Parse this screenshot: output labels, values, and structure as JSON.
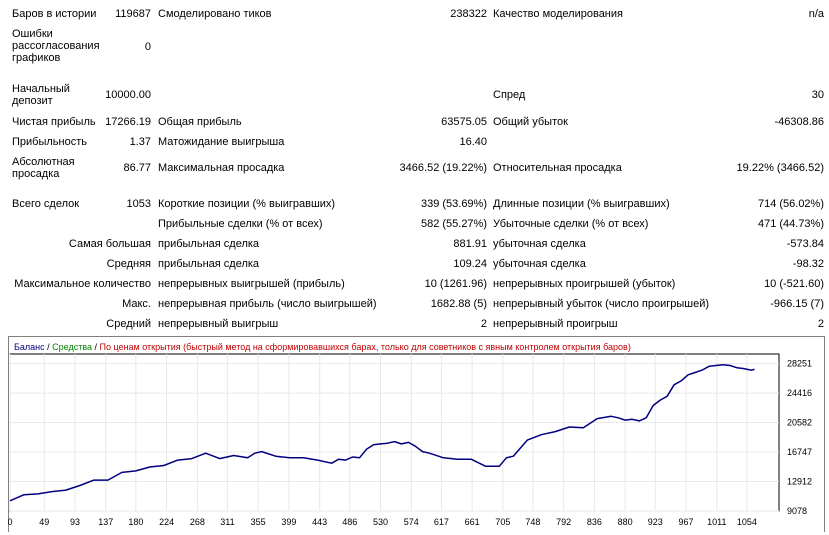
{
  "report": {
    "bars_label": "Баров в истории",
    "bars_value": "119687",
    "ticks_label": "Смоделировано тиков",
    "ticks_value": "238322",
    "quality_label": "Качество моделирования",
    "quality_value": "n/a",
    "mismatch_label": "Ошибки рассогласования графиков",
    "mismatch_value": "0",
    "deposit_label": "Начальный депозит",
    "deposit_value": "10000.00",
    "spread_label": "Спред",
    "spread_value": "30",
    "net_profit_label": "Чистая прибыль",
    "net_profit_value": "17266.19",
    "gross_profit_label": "Общая прибыль",
    "gross_profit_value": "63575.05",
    "gross_loss_label": "Общий убыток",
    "gross_loss_value": "-46308.86",
    "profit_factor_label": "Прибыльность",
    "profit_factor_value": "1.37",
    "expected_payoff_label": "Матожидание выигрыша",
    "expected_payoff_value": "16.40",
    "abs_dd_label": "Абсолютная просадка",
    "abs_dd_value": "86.77",
    "max_dd_label": "Максимальная просадка",
    "max_dd_value": "3466.52 (19.22%)",
    "rel_dd_label": "Относительная просадка",
    "rel_dd_value": "19.22% (3466.52)",
    "total_trades_label": "Всего сделок",
    "total_trades_value": "1053",
    "short_label": "Короткие позиции (% выигравших)",
    "short_value": "339 (53.69%)",
    "long_label": "Длинные позиции (% выигравших)",
    "long_value": "714 (56.02%)",
    "profit_trades_label": "Прибыльные сделки (% от всех)",
    "profit_trades_value": "582 (55.27%)",
    "loss_trades_label": "Убыточные сделки (% от всех)",
    "loss_trades_value": "471 (44.73%)",
    "largest_label": "Самая большая",
    "largest_profit_label": "прибыльная сделка",
    "largest_profit_value": "881.91",
    "largest_loss_label": "убыточная сделка",
    "largest_loss_value": "-573.84",
    "average_label": "Средняя",
    "average_profit_label": "прибыльная сделка",
    "average_profit_value": "109.24",
    "average_loss_label": "убыточная сделка",
    "average_loss_value": "-98.32",
    "max_count_label": "Максимальное количество",
    "max_consec_wins_label": "непрерывных выигрышей (прибыль)",
    "max_consec_wins_value": "10 (1261.96)",
    "max_consec_losses_label": "непрерывных проигрышей (убыток)",
    "max_consec_losses_value": "10 (-521.60)",
    "max_label": "Макс.",
    "max_consec_profit_label": "непрерывная прибыль (число выигрышей)",
    "max_consec_profit_value": "1682.88 (5)",
    "max_consec_loss_label": "непрерывный убыток (число проигрышей)",
    "max_consec_loss_value": "-966.15 (7)",
    "avg_label": "Средний",
    "avg_consec_wins_label": "непрерывный выигрыш",
    "avg_consec_wins_value": "2",
    "avg_consec_losses_label": "непрерывный проигрыш",
    "avg_consec_losses_value": "2"
  },
  "chart_data": {
    "type": "line",
    "legend": {
      "balance": "Баланс",
      "sep1": " / ",
      "equity": "Средства",
      "sep2": " / ",
      "mode": "По ценам открытия (быстрый метод на сформировавшихся барах, только для советников с явным контролем открытия баров)"
    },
    "x_ticks": [
      0,
      49,
      93,
      137,
      180,
      224,
      268,
      311,
      355,
      399,
      443,
      486,
      530,
      574,
      617,
      661,
      705,
      748,
      792,
      836,
      880,
      923,
      967,
      1011,
      1054
    ],
    "y_ticks": [
      9078,
      12912,
      16747,
      20582,
      24416,
      28251
    ],
    "xlim": [
      0,
      1100
    ],
    "ylim": [
      9078,
      29500
    ],
    "colors": {
      "balance": "#000080",
      "equity": "#008000",
      "mode": "#c00000"
    },
    "series": [
      {
        "name": "Баланс",
        "x": [
          0,
          20,
          40,
          60,
          80,
          100,
          120,
          140,
          160,
          180,
          200,
          220,
          240,
          260,
          280,
          300,
          320,
          340,
          350,
          360,
          380,
          400,
          420,
          440,
          460,
          470,
          480,
          490,
          500,
          510,
          520,
          530,
          540,
          550,
          560,
          570,
          580,
          590,
          600,
          620,
          640,
          660,
          680,
          700,
          710,
          720,
          740,
          760,
          780,
          800,
          820,
          840,
          860,
          870,
          880,
          890,
          900,
          910,
          920,
          930,
          940,
          950,
          960,
          970,
          980,
          990,
          1000,
          1010,
          1020,
          1030,
          1040,
          1050,
          1060,
          1065
        ],
        "y": [
          10400,
          11200,
          11300,
          11600,
          11800,
          12400,
          13100,
          13100,
          14100,
          14300,
          14800,
          15000,
          15700,
          15900,
          16600,
          15900,
          16300,
          16000,
          16600,
          16800,
          16200,
          16000,
          16000,
          15700,
          15300,
          15800,
          15700,
          16100,
          16000,
          17100,
          17700,
          17800,
          17900,
          18100,
          17800,
          18000,
          17500,
          16800,
          16600,
          16000,
          15800,
          15800,
          14900,
          14900,
          16000,
          16200,
          18300,
          19000,
          19400,
          20000,
          19900,
          21100,
          21400,
          21200,
          20900,
          21000,
          20800,
          21200,
          22800,
          23500,
          24000,
          25500,
          26000,
          26800,
          27100,
          27400,
          27900,
          28000,
          28100,
          28000,
          27700,
          27600,
          27400,
          27500
        ]
      }
    ]
  }
}
